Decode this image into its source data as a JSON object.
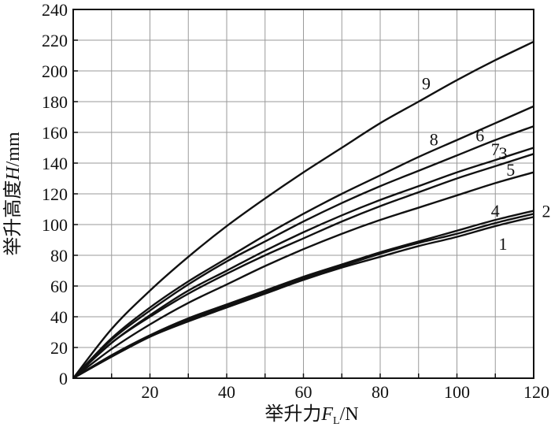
{
  "chart_data": {
    "type": "line",
    "xlabel": {
      "prefix": "举升力",
      "var": "F",
      "sub": "L",
      "unit": "/N"
    },
    "ylabel": {
      "prefix": "举升高度",
      "var": "H",
      "unit": "/mm"
    },
    "xlim": [
      0,
      120
    ],
    "ylim": [
      0,
      240
    ],
    "xticks": [
      20,
      40,
      60,
      80,
      100,
      120
    ],
    "yticks": [
      0,
      20,
      40,
      60,
      80,
      100,
      120,
      140,
      160,
      180,
      200,
      220,
      240
    ],
    "grid": true,
    "x": [
      0,
      10,
      20,
      30,
      40,
      50,
      60,
      70,
      80,
      90,
      100,
      110,
      120
    ],
    "series": [
      {
        "name": "1",
        "values": [
          0,
          14,
          27,
          37,
          46,
          55,
          64,
          72,
          79,
          86,
          92,
          99,
          105
        ]
      },
      {
        "name": "2",
        "values": [
          0,
          15,
          28,
          39,
          48,
          57,
          66,
          74,
          82,
          89,
          96,
          103,
          109
        ]
      },
      {
        "name": "3",
        "values": [
          0,
          23,
          40,
          55,
          68,
          80,
          91,
          102,
          112,
          121,
          130,
          138,
          146
        ]
      },
      {
        "name": "4",
        "values": [
          0,
          14,
          27,
          38,
          47,
          56,
          65,
          73,
          81,
          88,
          94,
          101,
          107
        ]
      },
      {
        "name": "5",
        "values": [
          0,
          19,
          35,
          49,
          61,
          73,
          84,
          94,
          103,
          111,
          119,
          127,
          134
        ]
      },
      {
        "name": "6",
        "values": [
          0,
          25,
          44,
          61,
          76,
          89,
          102,
          114,
          125,
          135,
          145,
          155,
          164
        ]
      },
      {
        "name": "7",
        "values": [
          0,
          23,
          41,
          57,
          70,
          83,
          95,
          106,
          116,
          125,
          134,
          142,
          150
        ]
      },
      {
        "name": "8",
        "values": [
          0,
          26,
          46,
          63,
          78,
          93,
          107,
          120,
          132,
          144,
          155,
          166,
          177
        ]
      },
      {
        "name": "9",
        "values": [
          0,
          32,
          57,
          79,
          99,
          117,
          134,
          150,
          166,
          180,
          194,
          207,
          219
        ]
      }
    ]
  }
}
